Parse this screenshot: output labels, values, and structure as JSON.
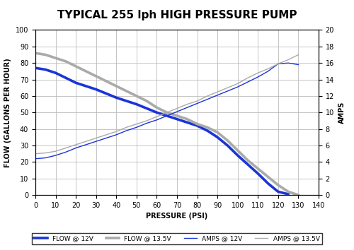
{
  "chart_data": {
    "type": "line",
    "title": "TYPICAL 255 lph HIGH PRESSURE PUMP",
    "x_label": "PRESSURE (PSI)",
    "y_label": "FLOW (GALLONS PER HOUR)",
    "y2_label": "AMPS",
    "x": [
      0,
      5,
      10,
      15,
      20,
      25,
      30,
      35,
      40,
      45,
      50,
      55,
      60,
      65,
      70,
      75,
      80,
      85,
      90,
      95,
      100,
      105,
      110,
      115,
      120,
      125,
      130
    ],
    "series": [
      {
        "name": "FLOW @ 12V",
        "color": "#1a35d6",
        "values": [
          77,
          76,
          74,
          71,
          68,
          66,
          64,
          61.5,
          59,
          57,
          55,
          52.5,
          50,
          48,
          46,
          44,
          42,
          39,
          35,
          30,
          24,
          18.5,
          13,
          7,
          2,
          0.5,
          null
        ]
      },
      {
        "name": "FLOW @ 13.5V",
        "color": "#aaaaaa",
        "values": [
          86,
          85,
          83,
          81,
          78,
          75,
          72,
          69,
          66,
          63,
          60,
          57,
          53,
          50,
          48,
          46,
          43,
          41,
          38,
          33,
          27,
          21,
          16,
          11,
          6,
          2,
          0
        ]
      },
      {
        "name": "AMPS @ 12V",
        "color": "#1a35d6",
        "axis": "y2",
        "values": [
          4.4,
          4.5,
          4.8,
          5.2,
          5.7,
          6.1,
          6.5,
          6.9,
          7.3,
          7.8,
          8.2,
          8.7,
          9.1,
          9.6,
          10.1,
          10.6,
          11.1,
          11.6,
          12.1,
          12.6,
          13.1,
          13.7,
          14.3,
          15.0,
          15.9,
          16.0,
          15.8
        ]
      },
      {
        "name": "AMPS @ 13.5V",
        "color": "#aaaaaa",
        "axis": "y2",
        "values": [
          5.0,
          5.1,
          5.3,
          5.7,
          6.1,
          6.5,
          6.9,
          7.3,
          7.7,
          8.2,
          8.6,
          9.0,
          9.5,
          10.0,
          10.5,
          11.0,
          11.4,
          12.0,
          12.5,
          13.0,
          13.5,
          14.2,
          14.8,
          15.3,
          15.9,
          16.4,
          17.0
        ]
      }
    ],
    "xlim": [
      0,
      140
    ],
    "xticks": [
      0,
      10,
      20,
      30,
      40,
      50,
      60,
      70,
      80,
      90,
      100,
      110,
      120,
      130,
      140
    ],
    "ylim": [
      0,
      100
    ],
    "yticks": [
      0,
      10,
      20,
      30,
      40,
      50,
      60,
      70,
      80,
      90,
      100
    ],
    "y2lim": [
      0,
      20
    ],
    "y2ticks": [
      0,
      2,
      4,
      6,
      8,
      10,
      12,
      14,
      16,
      18,
      20
    ],
    "grid": true,
    "legend": "lower center"
  }
}
